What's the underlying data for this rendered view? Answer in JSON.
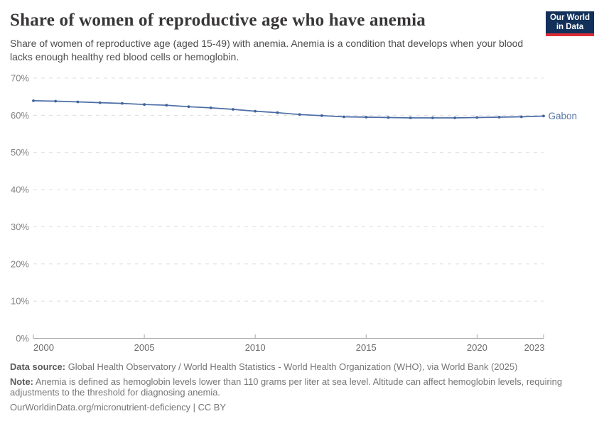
{
  "header": {
    "title": "Share of women of reproductive age who have anemia",
    "subtitle": "Share of women of reproductive age (aged 15-49) with anemia. Anemia is a condition that develops when your blood lacks enough healthy red blood cells or hemoglobin.",
    "logo_line1": "Our World",
    "logo_line2": "in Data"
  },
  "chart_data": {
    "type": "line",
    "title": "Share of women of reproductive age who have anemia",
    "x": [
      2000,
      2001,
      2002,
      2003,
      2004,
      2005,
      2006,
      2007,
      2008,
      2009,
      2010,
      2011,
      2012,
      2013,
      2014,
      2015,
      2016,
      2017,
      2018,
      2019,
      2020,
      2021,
      2022,
      2023
    ],
    "series": [
      {
        "name": "Gabon",
        "color": "#4c6da5",
        "values": [
          63.9,
          63.8,
          63.6,
          63.4,
          63.2,
          62.9,
          62.7,
          62.3,
          62.0,
          61.6,
          61.1,
          60.7,
          60.2,
          59.9,
          59.6,
          59.5,
          59.4,
          59.3,
          59.3,
          59.3,
          59.4,
          59.5,
          59.6,
          59.8
        ]
      }
    ],
    "xlabel": "",
    "ylabel": "",
    "ylim": [
      0,
      70
    ],
    "xlim": [
      2000,
      2023
    ],
    "yticks": {
      "values": [
        0,
        10,
        20,
        30,
        40,
        50,
        60,
        70
      ],
      "labels": [
        "0%",
        "10%",
        "20%",
        "30%",
        "40%",
        "50%",
        "60%",
        "70%"
      ]
    },
    "xticks": {
      "values": [
        2000,
        2005,
        2010,
        2015,
        2020,
        2023
      ],
      "labels": [
        "2000",
        "2005",
        "2010",
        "2015",
        "2020",
        "2023"
      ]
    },
    "grid": "horizontal-dashed",
    "legend_position": "line-end-label"
  },
  "footer": {
    "data_source_label": "Data source:",
    "data_source_text": "Global Health Observatory / World Health Statistics - World Health Organization (WHO), via World Bank (2025)",
    "note_label": "Note:",
    "note_text": "Anemia is defined as hemoglobin levels lower than 110 grams per liter at sea level. Altitude can affect hemoglobin levels, requiring adjustments to the threshold for diagnosing anemia.",
    "license_line": "OurWorldinData.org/micronutrient-deficiency | CC BY"
  },
  "colors": {
    "line": "#4c6da5",
    "point": "#3f639d",
    "series_label": "#5776a8",
    "logo_background": "#12305a",
    "logo_stripe": "#dc2c37",
    "grid": "#dcdcdc",
    "axis": "#a5a5a5",
    "y_tick_text": "#848484",
    "x_tick_text": "#6a6a6a"
  }
}
